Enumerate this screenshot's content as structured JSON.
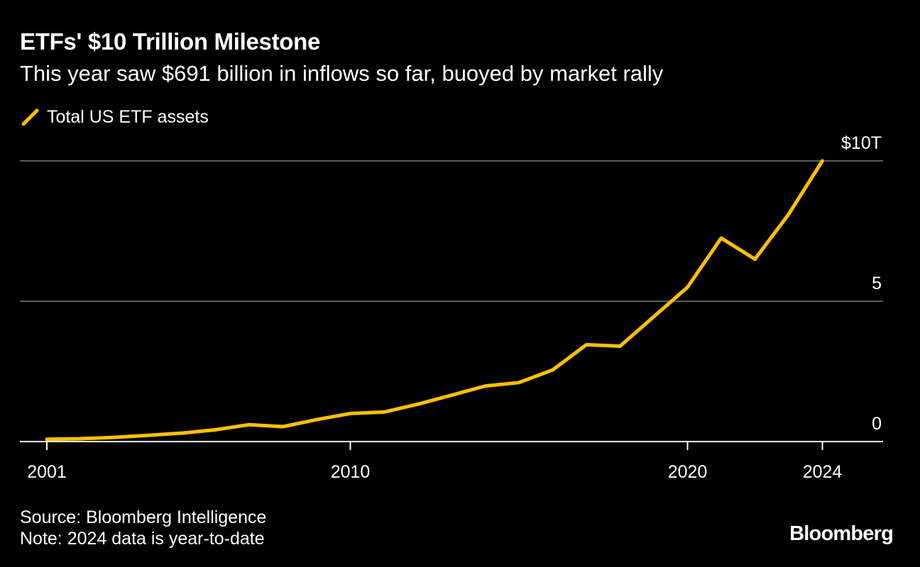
{
  "header": {
    "title": "ETFs' $10 Trillion Milestone",
    "subtitle": "This year saw $691 billion in inflows so far, buoyed by market rally"
  },
  "legend": {
    "label": "Total US ETF assets",
    "icon": "line-swatch-icon"
  },
  "colors": {
    "background": "#000000",
    "series": "#FFC000",
    "grid": "#5c5c5c",
    "text": "#ffffff"
  },
  "footer": {
    "source": "Source: Bloomberg Intelligence",
    "note": "Note: 2024 data is year-to-date"
  },
  "brand": {
    "logo": "Bloomberg"
  },
  "chart_data": {
    "type": "line",
    "title": "ETFs' $10 Trillion Milestone",
    "subtitle": "This year saw $691 billion in inflows so far, buoyed by market rally",
    "xlabel": "",
    "ylabel": "",
    "xlim": [
      2000.2,
      2025.8
    ],
    "ylim": [
      0,
      10
    ],
    "x_ticks": [
      {
        "value": 2001,
        "label": "2001"
      },
      {
        "value": 2010,
        "label": "2010"
      },
      {
        "value": 2020,
        "label": "2020"
      },
      {
        "value": 2024,
        "label": "2024"
      }
    ],
    "y_ticks": [
      {
        "value": 0,
        "label": "0"
      },
      {
        "value": 5,
        "label": "5"
      },
      {
        "value": 10,
        "label": "$10T"
      }
    ],
    "grid": true,
    "legend_position": "top-left",
    "series": [
      {
        "name": "Total US ETF assets",
        "x": [
          2001,
          2002,
          2003,
          2004,
          2005,
          2006,
          2007,
          2008,
          2009,
          2010,
          2011,
          2012,
          2013,
          2014,
          2015,
          2016,
          2017,
          2018,
          2019,
          2020,
          2021,
          2022,
          2023,
          2024
        ],
        "values": [
          0.08,
          0.1,
          0.15,
          0.22,
          0.3,
          0.42,
          0.6,
          0.53,
          0.78,
          1.0,
          1.05,
          1.33,
          1.65,
          1.98,
          2.1,
          2.55,
          3.45,
          3.4,
          4.45,
          5.5,
          7.25,
          6.5,
          8.1,
          10.0
        ]
      }
    ]
  }
}
